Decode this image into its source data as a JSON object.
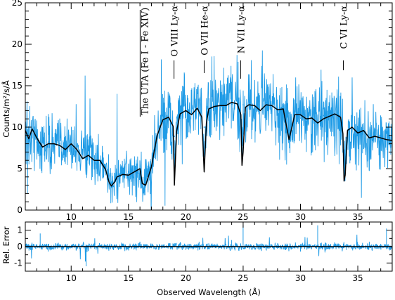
{
  "chart_data": [
    {
      "type": "line",
      "ylabel": "Counts/m²/s/Å",
      "xlim": [
        6,
        38
      ],
      "ylim": [
        0,
        25
      ],
      "x_ticks": [
        10,
        15,
        20,
        25,
        30,
        35
      ],
      "y_ticks": [
        0,
        5,
        10,
        15,
        20,
        25
      ],
      "series": [
        {
          "role": "data",
          "color": "#1f9be6",
          "x": [
            6,
            7,
            8,
            9,
            10,
            11,
            12,
            13,
            13.5,
            14,
            15,
            16,
            16.2,
            16.5,
            17,
            17.5,
            18,
            18.5,
            19,
            19.5,
            20,
            21,
            21.6,
            22,
            23,
            24,
            25,
            26,
            27,
            28,
            28.7,
            29,
            30,
            31,
            32,
            33,
            34,
            35,
            36,
            37,
            38
          ],
          "y": [
            9.8,
            8.2,
            8.2,
            8.0,
            8.1,
            7.0,
            6.4,
            5.0,
            3.3,
            3.9,
            4.6,
            4.5,
            2.8,
            3.8,
            5.4,
            9.0,
            10.9,
            11.2,
            8.9,
            11.8,
            11.9,
            12.1,
            10.0,
            12.3,
            12.6,
            13.4,
            12.7,
            12.7,
            13.0,
            12.3,
            9.5,
            11.7,
            11.1,
            11.2,
            11.4,
            11.5,
            8.7,
            9.2,
            8.7,
            8.6,
            8.2
          ]
        },
        {
          "role": "model",
          "color": "#000000",
          "x": [
            6,
            6.3,
            6.6,
            7,
            7.5,
            8,
            8.5,
            9,
            9.5,
            10,
            10.5,
            11,
            11.5,
            12,
            12.5,
            13,
            13.3,
            13.5,
            13.8,
            14,
            14.5,
            15,
            15.5,
            16,
            16.2,
            16.5,
            17,
            17.5,
            18,
            18.5,
            18.9,
            19.0,
            19.2,
            19.5,
            20,
            20.5,
            21,
            21.4,
            21.6,
            21.8,
            22,
            22.5,
            23,
            23.5,
            24,
            24.5,
            24.8,
            24.9,
            25.0,
            25.2,
            25.5,
            26,
            26.5,
            27,
            27.5,
            28,
            28.5,
            28.8,
            29,
            29.5,
            30,
            30.5,
            31,
            31.5,
            32,
            32.5,
            33,
            33.5,
            33.7,
            33.8,
            33.9,
            34.1,
            34.5,
            35,
            35.5,
            36,
            36.5,
            37,
            37.5,
            38
          ],
          "y": [
            9.6,
            8.6,
            9.8,
            8.7,
            7.6,
            8.0,
            8.0,
            7.8,
            7.3,
            8.0,
            7.3,
            6.2,
            6.6,
            6.0,
            6.0,
            4.9,
            3.4,
            2.9,
            3.4,
            4.0,
            4.3,
            4.2,
            4.6,
            5.0,
            3.2,
            3.0,
            5.2,
            9.0,
            10.9,
            11.2,
            10.1,
            3.0,
            9.5,
            11.6,
            12.0,
            11.5,
            12.3,
            11.2,
            4.6,
            10.5,
            12.2,
            12.5,
            12.6,
            12.6,
            13.0,
            12.8,
            11.5,
            5.4,
            7.0,
            12.4,
            12.7,
            12.6,
            12.0,
            12.7,
            12.6,
            12.1,
            12.2,
            10.0,
            8.5,
            11.5,
            11.5,
            11.0,
            11.1,
            10.5,
            11.0,
            11.3,
            11.6,
            11.2,
            9.2,
            3.5,
            4.2,
            9.6,
            10.0,
            9.3,
            9.6,
            8.7,
            8.9,
            8.7,
            8.5,
            8.4
          ]
        }
      ],
      "annotations": [
        {
          "label": "The UTA (Fe I - Fe XIV)",
          "x": 16.2
        },
        {
          "label": "O VIII Ly-α",
          "x": 18.97
        },
        {
          "label": "O VII He-α",
          "x": 21.6
        },
        {
          "label": "N VII Ly-α",
          "x": 24.78
        },
        {
          "label": "C VI Ly-α",
          "x": 33.74
        }
      ]
    },
    {
      "type": "line",
      "ylabel": "Rel. Error",
      "xlabel": "Observed Wavelength (Å)",
      "xlim": [
        6,
        38
      ],
      "ylim": [
        -1.5,
        1.5
      ],
      "x_ticks": [
        10,
        15,
        20,
        25,
        30,
        35
      ],
      "y_ticks": [
        -1,
        0,
        1
      ],
      "reference_line": 0,
      "series": [
        {
          "role": "residuals",
          "color": "#1f9be6",
          "x": [
            6,
            7.3,
            8,
            10,
            11.3,
            12,
            14,
            16,
            18,
            20,
            22,
            24,
            25,
            26,
            28,
            30,
            31.5,
            32,
            34,
            36,
            37.5,
            38
          ],
          "y": [
            -0.2,
            0.8,
            -0.3,
            0.1,
            -1.2,
            0.2,
            -0.1,
            0.3,
            0.1,
            -0.2,
            0.2,
            0.4,
            1.3,
            -0.1,
            0.2,
            -0.3,
            1.3,
            0.1,
            -0.2,
            0.3,
            1.1,
            -0.1
          ]
        }
      ]
    }
  ],
  "colors": {
    "data": "#1f9be6",
    "model": "#000000",
    "axes": "#000000"
  }
}
